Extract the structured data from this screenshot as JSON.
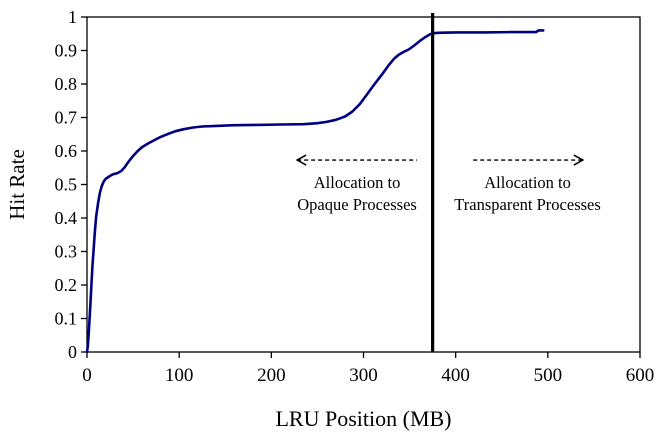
{
  "chart_data": {
    "type": "line",
    "title": "",
    "xlabel": "LRU Position (MB)",
    "ylabel": "Hit Rate",
    "xlim": [
      0,
      600
    ],
    "ylim": [
      0,
      1
    ],
    "x_tick_values": [
      0,
      100,
      200,
      300,
      400,
      500,
      600
    ],
    "x_tick_labels": [
      "0",
      "100",
      "200",
      "300",
      "400",
      "500",
      "600"
    ],
    "y_tick_values": [
      0,
      0.1,
      0.2,
      0.3,
      0.4,
      0.5,
      0.6,
      0.7,
      0.8,
      0.9,
      1
    ],
    "y_tick_labels": [
      "0",
      "0.1",
      "0.2",
      "0.3",
      "0.4",
      "0.5",
      "0.6",
      "0.7",
      "0.8",
      "0.9",
      "1"
    ],
    "grid": false,
    "legend": "none",
    "colors": {
      "axis": "#000000",
      "text": "#000000",
      "background": "#ffffff",
      "curve": "#000080",
      "divider": "#000000"
    },
    "series": [
      {
        "name": "hit-rate-curve",
        "color": "#000080",
        "points": [
          [
            0,
            0
          ],
          [
            1,
            0.02
          ],
          [
            2,
            0.06
          ],
          [
            3,
            0.11
          ],
          [
            4,
            0.16
          ],
          [
            5,
            0.21
          ],
          [
            6,
            0.26
          ],
          [
            7,
            0.3
          ],
          [
            8,
            0.34
          ],
          [
            9,
            0.375
          ],
          [
            10,
            0.405
          ],
          [
            12,
            0.445
          ],
          [
            14,
            0.475
          ],
          [
            16,
            0.495
          ],
          [
            18,
            0.508
          ],
          [
            20,
            0.516
          ],
          [
            24,
            0.524
          ],
          [
            28,
            0.53
          ],
          [
            33,
            0.534
          ],
          [
            37,
            0.54
          ],
          [
            41,
            0.552
          ],
          [
            45,
            0.568
          ],
          [
            50,
            0.585
          ],
          [
            55,
            0.6
          ],
          [
            60,
            0.612
          ],
          [
            66,
            0.622
          ],
          [
            72,
            0.631
          ],
          [
            80,
            0.642
          ],
          [
            88,
            0.651
          ],
          [
            96,
            0.659
          ],
          [
            105,
            0.665
          ],
          [
            115,
            0.67
          ],
          [
            125,
            0.673
          ],
          [
            140,
            0.675
          ],
          [
            160,
            0.677
          ],
          [
            185,
            0.678
          ],
          [
            210,
            0.679
          ],
          [
            235,
            0.68
          ],
          [
            250,
            0.683
          ],
          [
            260,
            0.687
          ],
          [
            270,
            0.693
          ],
          [
            280,
            0.703
          ],
          [
            288,
            0.718
          ],
          [
            296,
            0.74
          ],
          [
            304,
            0.77
          ],
          [
            312,
            0.8
          ],
          [
            320,
            0.828
          ],
          [
            327,
            0.855
          ],
          [
            333,
            0.875
          ],
          [
            338,
            0.887
          ],
          [
            343,
            0.895
          ],
          [
            349,
            0.903
          ],
          [
            355,
            0.915
          ],
          [
            361,
            0.928
          ],
          [
            367,
            0.94
          ],
          [
            372,
            0.948
          ],
          [
            377,
            0.952
          ],
          [
            385,
            0.953
          ],
          [
            400,
            0.954
          ],
          [
            430,
            0.954
          ],
          [
            460,
            0.955
          ],
          [
            487,
            0.955
          ],
          [
            490,
            0.96
          ],
          [
            495,
            0.96
          ]
        ]
      }
    ],
    "divider_line": {
      "x": 375,
      "color": "#000000"
    },
    "annotations": [
      {
        "name": "opaque-allocation",
        "arrow_direction": "left",
        "arrow_x": [
          228,
          358
        ],
        "arrow_y": 0.573,
        "text_x": 293,
        "text_lines": [
          "Allocation to",
          "Opaque Processes"
        ]
      },
      {
        "name": "transparent-allocation",
        "arrow_direction": "right",
        "arrow_x": [
          419,
          538
        ],
        "arrow_y": 0.573,
        "text_x": 478,
        "text_lines": [
          "Allocation to",
          "Transparent Processes"
        ]
      }
    ]
  }
}
